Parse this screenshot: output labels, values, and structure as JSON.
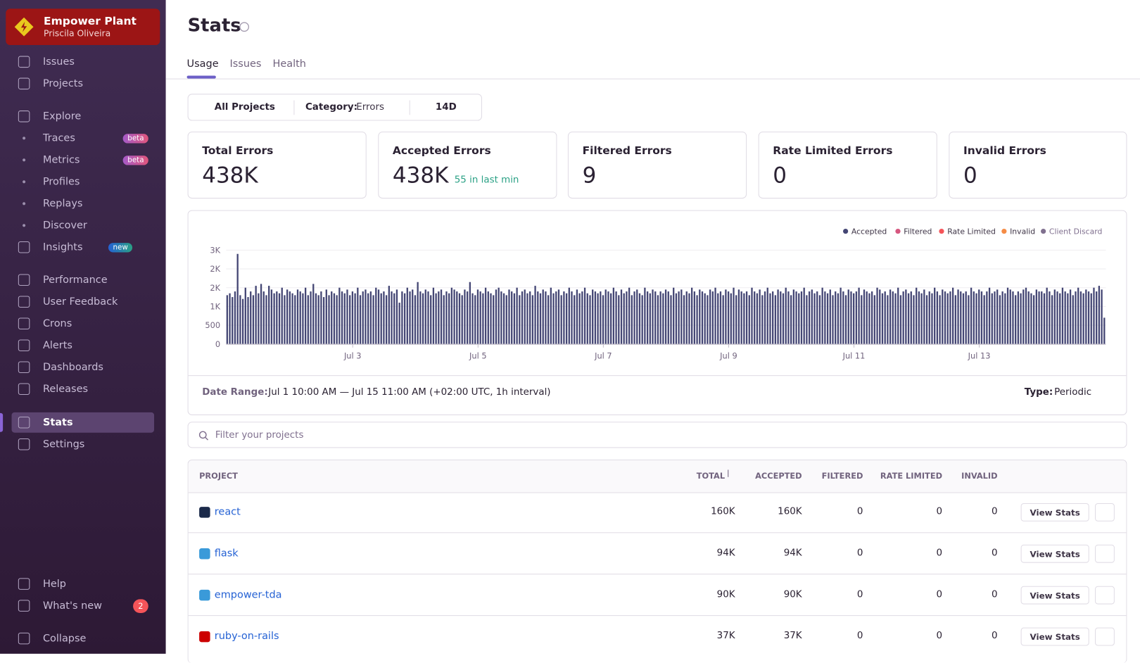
{
  "sidebar": {
    "org": "Empower Plant",
    "user": "Priscila Oliveira",
    "nav": [
      {
        "label": "Issues"
      },
      {
        "label": "Projects"
      },
      {
        "label": "Explore"
      },
      {
        "label": "Traces",
        "badge": "beta"
      },
      {
        "label": "Metrics",
        "badge": "beta"
      },
      {
        "label": "Profiles"
      },
      {
        "label": "Replays"
      },
      {
        "label": "Discover"
      },
      {
        "label": "Insights",
        "badge": "new"
      },
      {
        "label": "Performance"
      },
      {
        "label": "User Feedback"
      },
      {
        "label": "Crons"
      },
      {
        "label": "Alerts"
      },
      {
        "label": "Dashboards"
      },
      {
        "label": "Releases"
      },
      {
        "label": "Stats"
      },
      {
        "label": "Settings"
      },
      {
        "label": "Help"
      },
      {
        "label": "What's new",
        "badge": 2
      },
      {
        "label": "Collapse"
      }
    ]
  },
  "header": {
    "title": "Stats",
    "tabs": [
      "Usage",
      "Issues",
      "Health"
    ]
  },
  "filters": {
    "projects": "All Projects",
    "category_label": "Category:",
    "category": "Errors",
    "period": "14D"
  },
  "cards": [
    {
      "title": "Total Errors",
      "value": "438K"
    },
    {
      "title": "Accepted Errors",
      "value": "438K",
      "note": "55 in last min"
    },
    {
      "title": "Filtered Errors",
      "value": 9
    },
    {
      "title": "Rate Limited Errors",
      "value": 0
    },
    {
      "title": "Invalid Errors",
      "value": 0
    }
  ],
  "chart_data": {
    "type": "bar",
    "legend": [
      {
        "name": "Accepted",
        "color": "#444674"
      },
      {
        "name": "Filtered",
        "color": "#d6567f"
      },
      {
        "name": "Rate Limited",
        "color": "#f55459"
      },
      {
        "name": "Invalid",
        "color": "#f58c46"
      },
      {
        "name": "Client Discard",
        "color": "#80708f"
      }
    ],
    "series": [
      {
        "name": "Accepted",
        "color": "#444674",
        "values": [
          1300,
          1350,
          1250,
          1400,
          2400,
          1300,
          1200,
          1500,
          1250,
          1400,
          1300,
          1550,
          1350,
          1600,
          1400,
          1300,
          1550,
          1450,
          1350,
          1400,
          1350,
          1500,
          1300,
          1450,
          1400,
          1350,
          1300,
          1450,
          1400,
          1350,
          1500,
          1300,
          1400,
          1600,
          1350,
          1300,
          1400,
          1250,
          1450,
          1300,
          1400,
          1350,
          1300,
          1500,
          1400,
          1350,
          1450,
          1300,
          1400,
          1350,
          1500,
          1300,
          1400,
          1450,
          1350,
          1400,
          1300,
          1500,
          1450,
          1350,
          1400,
          1300,
          1550,
          1400,
          1350,
          1450,
          1100,
          1400,
          1350,
          1500,
          1400,
          1450,
          1300,
          1650,
          1400,
          1350,
          1450,
          1400,
          1300,
          1500,
          1350,
          1400,
          1450,
          1300,
          1400,
          1350,
          1500,
          1450,
          1400,
          1350,
          1300,
          1450,
          1400,
          1650,
          1350,
          1300,
          1450,
          1400,
          1350,
          1500,
          1400,
          1350,
          1300,
          1450,
          1500,
          1400,
          1350,
          1300,
          1450,
          1400,
          1350,
          1500,
          1300,
          1400,
          1450,
          1350,
          1400,
          1300,
          1550,
          1400,
          1350,
          1450,
          1400,
          1300,
          1500,
          1350,
          1400,
          1450,
          1300,
          1400,
          1350,
          1500,
          1400,
          1300,
          1450,
          1350,
          1400,
          1500,
          1350,
          1300,
          1450,
          1400,
          1350,
          1400,
          1300,
          1450,
          1400,
          1350,
          1500,
          1400,
          1300,
          1450,
          1350,
          1400,
          1500,
          1300,
          1400,
          1450,
          1350,
          1300,
          1500,
          1400,
          1350,
          1450,
          1400,
          1300,
          1400,
          1350,
          1450,
          1400,
          1300,
          1500,
          1350,
          1400,
          1450,
          1300,
          1400,
          1350,
          1500,
          1400,
          1300,
          1450,
          1400,
          1350,
          1300,
          1450,
          1400,
          1500,
          1350,
          1400,
          1300,
          1450,
          1400,
          1350,
          1500,
          1300,
          1450,
          1400,
          1350,
          1400,
          1300,
          1500,
          1400,
          1350,
          1450,
          1300,
          1400,
          1500,
          1350,
          1400,
          1300,
          1450,
          1400,
          1350,
          1500,
          1400,
          1300,
          1450,
          1400,
          1350,
          1400,
          1500,
          1300,
          1400,
          1450,
          1350,
          1400,
          1300,
          1500,
          1400,
          1350,
          1450,
          1300,
          1400,
          1350,
          1500,
          1400,
          1300,
          1450,
          1400,
          1350,
          1400,
          1500,
          1300,
          1450,
          1400,
          1350,
          1400,
          1300,
          1500,
          1450,
          1350,
          1400,
          1300,
          1450,
          1400,
          1350,
          1500,
          1300,
          1400,
          1450,
          1350,
          1400,
          1300,
          1500,
          1400,
          1350,
          1450,
          1300,
          1400,
          1350,
          1500,
          1400,
          1300,
          1450,
          1400,
          1350,
          1400,
          1500,
          1300,
          1450,
          1400,
          1350,
          1400,
          1300,
          1500,
          1400,
          1350,
          1450,
          1400,
          1300,
          1400,
          1500,
          1350,
          1400,
          1450,
          1300,
          1400,
          1350,
          1500,
          1450,
          1400,
          1300,
          1400,
          1350,
          1450,
          1500,
          1400,
          1350,
          1300,
          1450,
          1400,
          1400,
          1350,
          1500,
          1400,
          1300,
          1450,
          1400,
          1350,
          1500,
          1400,
          1350,
          1450,
          1300,
          1400,
          1500,
          1400,
          1350,
          1450,
          1400,
          1350,
          1500,
          1400,
          1550,
          1450,
          700
        ]
      }
    ],
    "ylim": [
      0,
      2500
    ],
    "yticks": [
      0,
      500,
      {
        "value": 1000,
        "label": "1K"
      },
      {
        "value": 1500,
        "label": "2K"
      },
      {
        "value": 2000,
        "label": "2K"
      },
      {
        "value": 2500,
        "label": "3K"
      }
    ],
    "xticks": [
      {
        "value": 48,
        "label": "Jul 3"
      },
      {
        "value": 96,
        "label": "Jul 5"
      },
      {
        "value": 144,
        "label": "Jul 7"
      },
      {
        "value": 192,
        "label": "Jul 9"
      },
      {
        "value": 240,
        "label": "Jul 11"
      },
      {
        "value": 288,
        "label": "Jul 13"
      }
    ],
    "grid": true
  },
  "footer": {
    "date_label": "Date Range:",
    "date_range": "Jul 1 10:00 AM — Jul 15 11:00 AM (+02:00 UTC, 1h interval)",
    "type_label": "Type:",
    "type": "Periodic"
  },
  "search_placeholder": "Filter your projects",
  "table": {
    "columns": [
      "PROJECT",
      "TOTAL",
      "ACCEPTED",
      "FILTERED",
      "RATE LIMITED",
      "INVALID"
    ],
    "action": "View Stats",
    "rows": [
      [
        "react",
        "160K",
        "160K",
        0,
        0,
        0
      ],
      [
        "flask",
        "94K",
        "94K",
        0,
        0,
        0
      ],
      [
        "empower-tda",
        "90K",
        "90K",
        0,
        0,
        0
      ],
      [
        "ruby-on-rails",
        "37K",
        "37K",
        0,
        0,
        0
      ]
    ]
  }
}
